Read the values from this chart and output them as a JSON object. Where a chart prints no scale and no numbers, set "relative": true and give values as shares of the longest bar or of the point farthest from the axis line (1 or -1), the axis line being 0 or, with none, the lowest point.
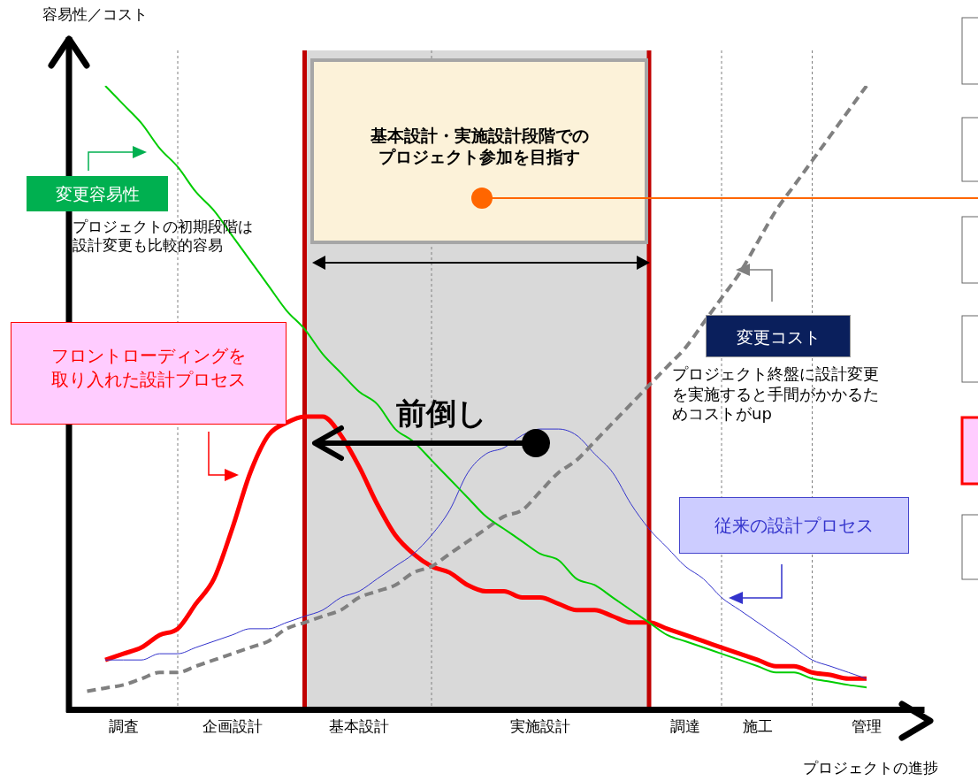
{
  "chart_data": {
    "type": "line",
    "relative": true,
    "ylabel": "容易性／コスト",
    "xlabel": "プロジェクトの進捗",
    "categories": [
      null,
      null,
      null,
      "調査",
      null,
      null,
      null,
      null,
      null,
      "企画設計",
      null,
      null,
      null,
      null,
      null,
      null,
      "基本設計",
      null,
      null,
      null,
      null,
      null,
      null,
      null,
      null,
      null,
      "実施設計",
      null,
      null,
      null,
      null,
      null,
      null,
      null,
      "調達",
      null,
      null,
      null,
      "施工",
      null,
      null,
      null,
      null,
      null,
      "管理",
      null
    ],
    "tick_labels": "x",
    "series": [
      {
        "name": "変更容易性",
        "color": "#00cc00",
        "values": [
          null,
          null,
          1,
          0.97,
          0.94,
          0.9,
          0.87,
          0.83,
          0.8,
          0.76,
          0.72,
          0.68,
          0.64,
          0.61,
          0.57,
          0.54,
          0.51,
          0.49,
          0.45,
          0.43,
          0.4,
          0.37,
          0.34,
          0.31,
          0.29,
          0.27,
          0.25,
          0.24,
          0.21,
          0.2,
          0.18,
          0.16,
          0.14,
          0.12,
          0.11,
          0.1,
          0.09,
          0.08,
          0.07,
          0.06,
          0.06,
          0.05,
          0.045,
          0.04,
          0.036,
          null
        ]
      },
      {
        "name": "変更コスト",
        "color": "#808080",
        "line_style": "dashed",
        "values": [
          null,
          0.03,
          0.035,
          0.04,
          0.05,
          0.06,
          0.06,
          0.07,
          0.08,
          0.09,
          0.1,
          0.11,
          0.13,
          0.14,
          0.15,
          0.16,
          0.18,
          0.19,
          0.2,
          0.22,
          0.23,
          0.25,
          0.27,
          0.29,
          0.31,
          0.32,
          0.35,
          0.38,
          0.4,
          0.43,
          0.46,
          0.49,
          0.52,
          0.55,
          0.58,
          0.62,
          0.66,
          0.7,
          0.75,
          0.8,
          0.84,
          0.88,
          0.92,
          0.96,
          1,
          null
        ]
      },
      {
        "name": "従来の設計プロセス",
        "color": "#3333cc",
        "values": [
          null,
          null,
          0.08,
          0.08,
          0.08,
          0.09,
          0.09,
          0.1,
          0.11,
          0.12,
          0.13,
          0.13,
          0.14,
          0.15,
          0.16,
          0.18,
          0.19,
          0.21,
          0.23,
          0.25,
          0.28,
          0.32,
          0.38,
          0.41,
          0.42,
          0.44,
          0.45,
          0.45,
          0.44,
          0.41,
          0.38,
          0.33,
          0.29,
          0.26,
          0.23,
          0.21,
          0.18,
          0.16,
          0.14,
          0.12,
          0.1,
          0.08,
          0.07,
          0.06,
          0.05,
          null
        ]
      },
      {
        "name": "フロントローディングを取り入れた設計プロセス",
        "color": "#ff0000",
        "values": [
          null,
          null,
          0.08,
          0.09,
          0.1,
          0.12,
          0.13,
          0.17,
          0.21,
          0.29,
          0.38,
          0.44,
          0.46,
          0.47,
          0.47,
          0.44,
          0.39,
          0.33,
          0.28,
          0.25,
          0.23,
          0.22,
          0.2,
          0.19,
          0.19,
          0.18,
          0.18,
          0.17,
          0.16,
          0.16,
          0.15,
          0.14,
          0.14,
          0.13,
          0.12,
          0.11,
          0.1,
          0.09,
          0.08,
          0.07,
          0.07,
          0.06,
          0.056,
          0.05,
          0.05,
          null
        ]
      }
    ],
    "grid": "x",
    "annotations": [
      "プロジェクトの初期段階は設計変更も比較的容易",
      "プロジェクト終盤に設計変更を実施すると手間がかかるためコストがup",
      "基本設計・実施設計段階でのプロジェクト参加を目指す",
      "前倒し"
    ]
  }
}
